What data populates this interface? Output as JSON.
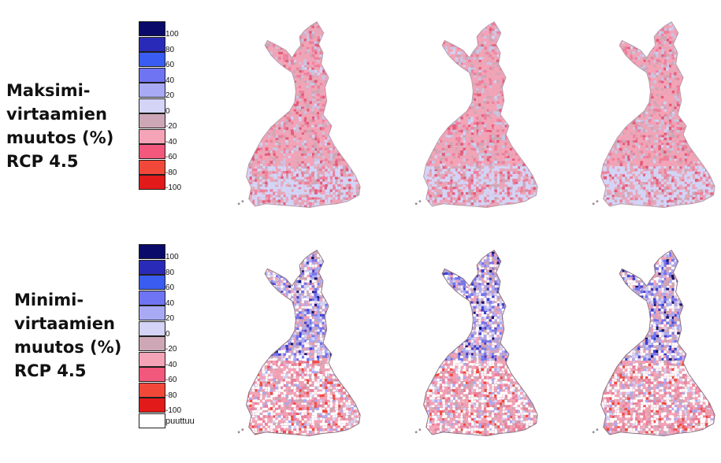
{
  "rows": [
    {
      "label": "Maksimi-\nvirtaamien\nmuutos (%)\nRCP 4.5",
      "legend": {
        "ticks": [
          "100",
          "80",
          "60",
          "40",
          "20",
          "0",
          "-20",
          "-40",
          "-60",
          "-80",
          "-100"
        ],
        "colors": [
          "#0a0a6a",
          "#2a2ab8",
          "#3a5cf0",
          "#6f74f2",
          "#a9aaf4",
          "#d3d4f6",
          "#cda7b6",
          "#f5a3b6",
          "#f2577c",
          "#f2483a",
          "#e21a1a"
        ]
      },
      "maps": [
        {
          "style": "max",
          "seed": 11
        },
        {
          "style": "max",
          "seed": 23
        },
        {
          "style": "max",
          "seed": 37
        }
      ]
    },
    {
      "label": "Minimi-\nvirtaamien\nmuutos (%)\nRCP 4.5",
      "legend": {
        "ticks": [
          "100",
          "80",
          "60",
          "40",
          "20",
          "0",
          "-20",
          "-40",
          "-60",
          "-80",
          "-100"
        ],
        "colors": [
          "#0a0a6a",
          "#2a2ab8",
          "#3a5cf0",
          "#6f74f2",
          "#a9aaf4",
          "#d3d4f6",
          "#cda7b6",
          "#f5a3b6",
          "#f2577c",
          "#f2483a",
          "#e21a1a"
        ],
        "missing_label": "puuttuu",
        "missing_color": "#ffffff"
      },
      "maps": [
        {
          "style": "min",
          "seed": 51
        },
        {
          "style": "min",
          "seed": 67
        },
        {
          "style": "min",
          "seed": 83
        }
      ]
    }
  ]
}
